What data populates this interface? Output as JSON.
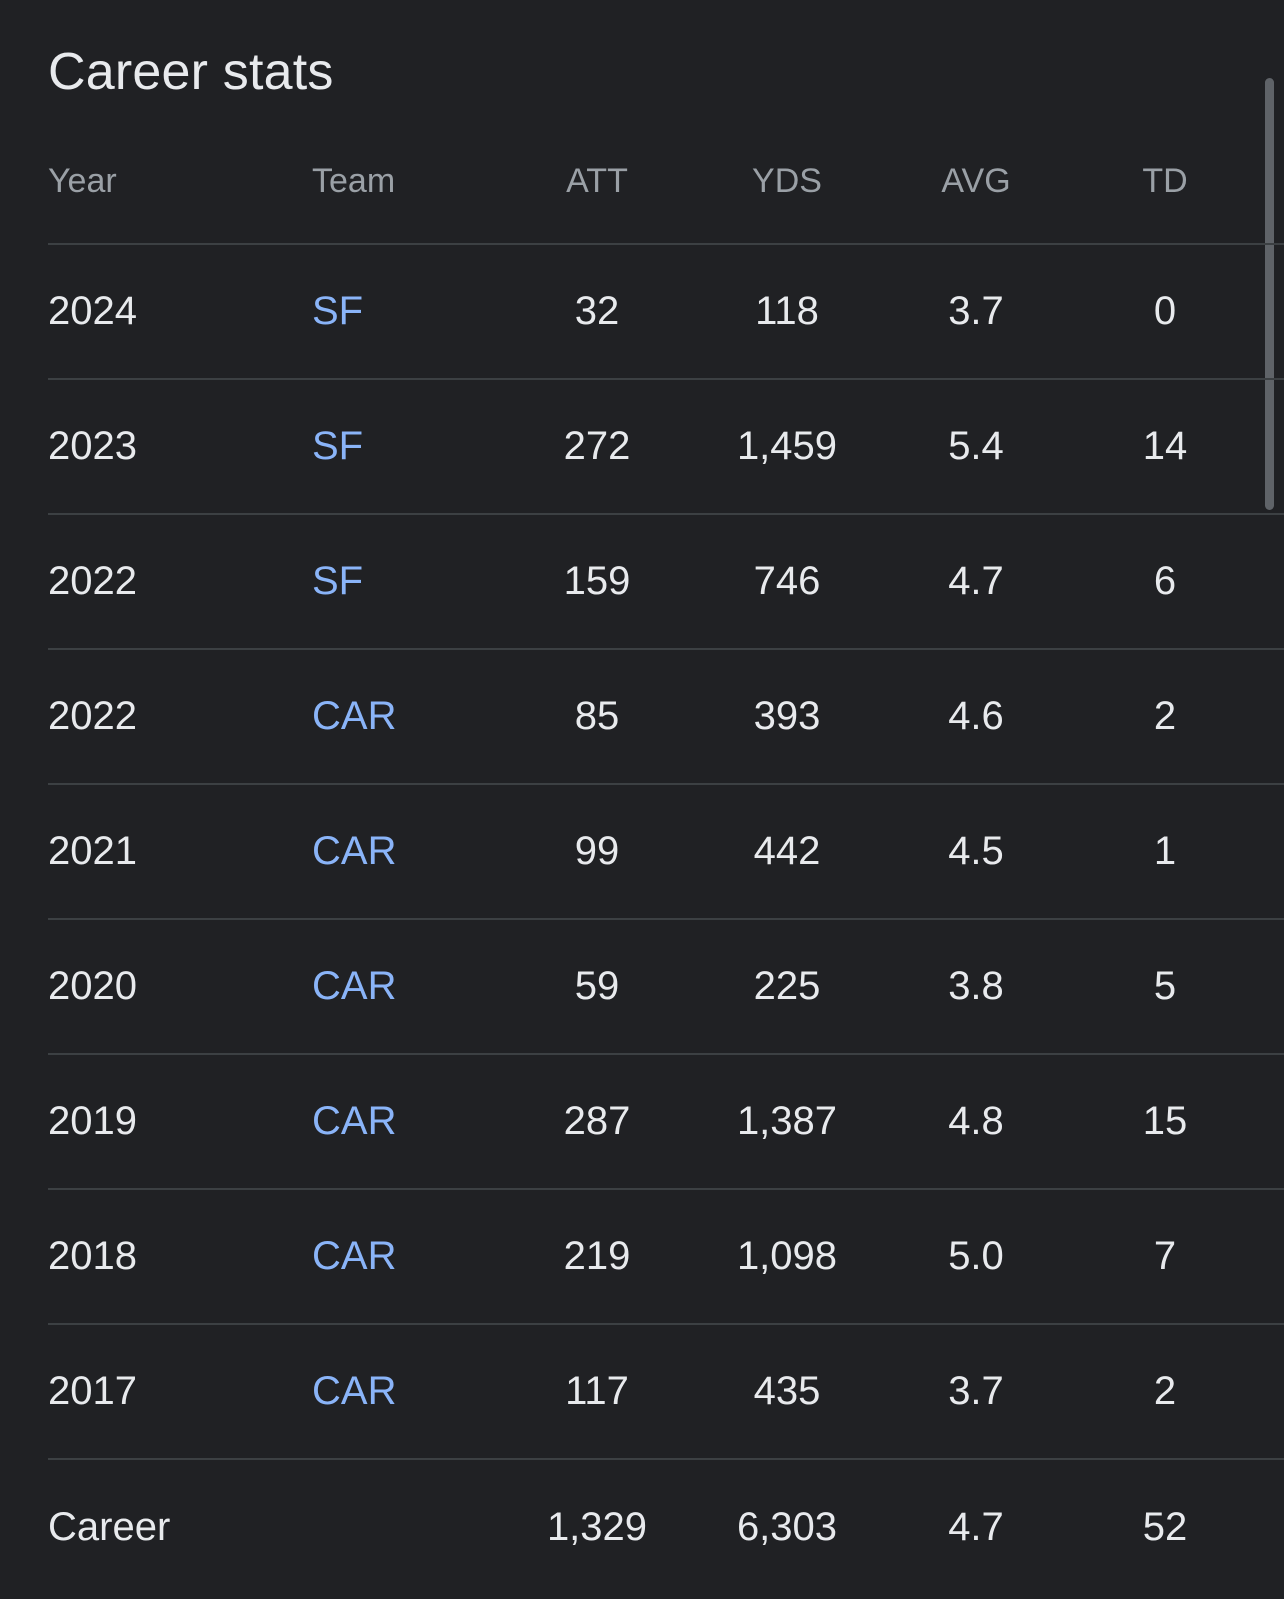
{
  "title": "Career stats",
  "accent_color": "#8ab4f8",
  "columns": {
    "year": "Year",
    "team": "Team",
    "att": "ATT",
    "yds": "YDS",
    "avg": "AVG",
    "td": "TD"
  },
  "rows": [
    {
      "year": "2024",
      "team": "SF",
      "att": "32",
      "yds": "118",
      "avg": "3.7",
      "td": "0"
    },
    {
      "year": "2023",
      "team": "SF",
      "att": "272",
      "yds": "1,459",
      "avg": "5.4",
      "td": "14"
    },
    {
      "year": "2022",
      "team": "SF",
      "att": "159",
      "yds": "746",
      "avg": "4.7",
      "td": "6"
    },
    {
      "year": "2022",
      "team": "CAR",
      "att": "85",
      "yds": "393",
      "avg": "4.6",
      "td": "2"
    },
    {
      "year": "2021",
      "team": "CAR",
      "att": "99",
      "yds": "442",
      "avg": "4.5",
      "td": "1"
    },
    {
      "year": "2020",
      "team": "CAR",
      "att": "59",
      "yds": "225",
      "avg": "3.8",
      "td": "5"
    },
    {
      "year": "2019",
      "team": "CAR",
      "att": "287",
      "yds": "1,387",
      "avg": "4.8",
      "td": "15"
    },
    {
      "year": "2018",
      "team": "CAR",
      "att": "219",
      "yds": "1,098",
      "avg": "5.0",
      "td": "7"
    },
    {
      "year": "2017",
      "team": "CAR",
      "att": "117",
      "yds": "435",
      "avg": "3.7",
      "td": "2"
    }
  ],
  "total": {
    "label": "Career",
    "team": "",
    "att": "1,329",
    "yds": "6,303",
    "avg": "4.7",
    "td": "52"
  }
}
